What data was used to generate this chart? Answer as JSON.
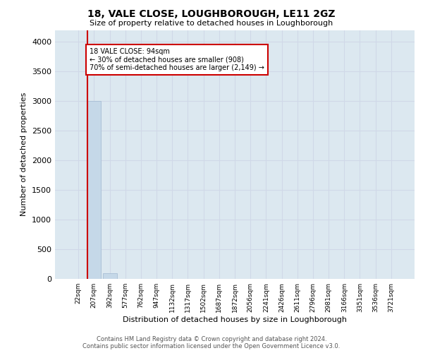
{
  "title": "18, VALE CLOSE, LOUGHBOROUGH, LE11 2GZ",
  "subtitle": "Size of property relative to detached houses in Loughborough",
  "xlabel": "Distribution of detached houses by size in Loughborough",
  "ylabel": "Number of detached properties",
  "bar_labels": [
    "22sqm",
    "207sqm",
    "392sqm",
    "577sqm",
    "762sqm",
    "947sqm",
    "1132sqm",
    "1317sqm",
    "1502sqm",
    "1687sqm",
    "1872sqm",
    "2056sqm",
    "2241sqm",
    "2426sqm",
    "2611sqm",
    "2796sqm",
    "2981sqm",
    "3166sqm",
    "3351sqm",
    "3536sqm",
    "3721sqm"
  ],
  "bar_values": [
    0,
    3000,
    100,
    0,
    0,
    0,
    0,
    0,
    0,
    0,
    0,
    0,
    0,
    0,
    0,
    0,
    0,
    0,
    0,
    0,
    0
  ],
  "bar_color": "#c5d8e8",
  "bar_edge_color": "#a0b8d0",
  "annotation_title": "18 VALE CLOSE: 94sqm",
  "annotation_line1": "← 30% of detached houses are smaller (908)",
  "annotation_line2": "70% of semi-detached houses are larger (2,149) →",
  "annotation_box_color": "#ffffff",
  "annotation_box_edge_color": "#cc0000",
  "ylim": [
    0,
    4200
  ],
  "yticks": [
    0,
    500,
    1000,
    1500,
    2000,
    2500,
    3000,
    3500,
    4000
  ],
  "grid_color": "#d0d8e8",
  "background_color": "#dce8f0",
  "red_line_x": 0.57,
  "footer_line1": "Contains HM Land Registry data © Crown copyright and database right 2024.",
  "footer_line2": "Contains public sector information licensed under the Open Government Licence v3.0."
}
